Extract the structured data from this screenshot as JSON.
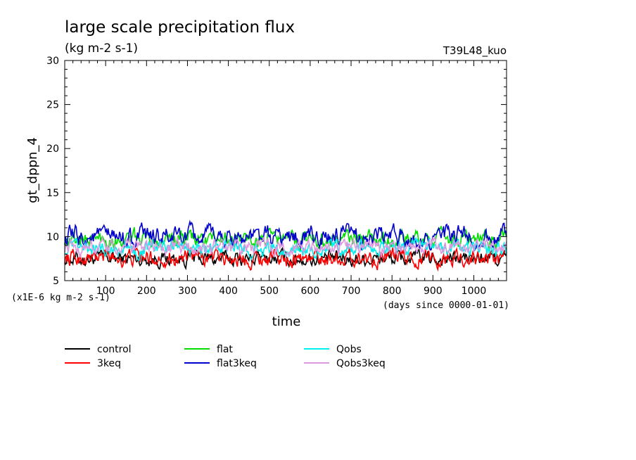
{
  "chart_data": {
    "type": "line",
    "title": "large scale precipitation flux",
    "subtitle": "(kg m-2 s-1)",
    "run_label": "T39L48_kuo",
    "xlabel": "time",
    "x_units": "(days since 0000-01-01)",
    "ylabel": "gt_dppn_4",
    "y_scale_note": "(x1E-6 kg m-2 s-1)",
    "xlim": [
      0,
      1080
    ],
    "ylim": [
      5,
      30
    ],
    "x_ticks": [
      "100",
      "200",
      "300",
      "400",
      "500",
      "600",
      "700",
      "800",
      "900",
      "1000"
    ],
    "y_ticks": [
      "5",
      "10",
      "15",
      "20",
      "25",
      "30"
    ],
    "legend_position": "bottom",
    "series": [
      {
        "name": "control",
        "color": "#000000",
        "mean": 7.5,
        "amplitude": 0.8
      },
      {
        "name": "3keq",
        "color": "#ff0000",
        "mean": 7.6,
        "amplitude": 0.9
      },
      {
        "name": "flat",
        "color": "#00dd00",
        "mean": 9.7,
        "amplitude": 0.9
      },
      {
        "name": "flat3keq",
        "color": "#0000cc",
        "mean": 9.9,
        "amplitude": 1.1
      },
      {
        "name": "Qobs",
        "color": "#00eeee",
        "mean": 8.6,
        "amplitude": 0.8
      },
      {
        "name": "Qobs3keq",
        "color": "#dd99dd",
        "mean": 8.8,
        "amplitude": 0.8
      }
    ]
  }
}
